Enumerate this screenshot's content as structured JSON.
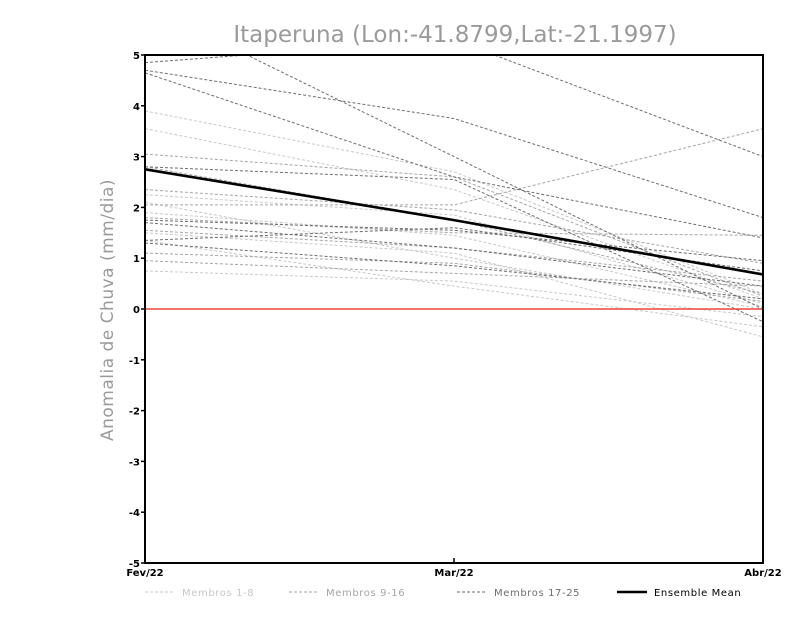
{
  "chart_data": {
    "type": "line",
    "title": "Itaperuna (Lon:-41.8799,Lat:-21.1997)",
    "xlabel": "",
    "ylabel": "Anomalia de Chuva (mm/dia)",
    "categories": [
      "Fev/22",
      "Mar/22",
      "Abr/22"
    ],
    "ylim": [
      -5,
      5
    ],
    "yticks": [
      5,
      4,
      3,
      2,
      1,
      0,
      -1,
      -2,
      -3,
      -4,
      -5
    ],
    "grid": false,
    "legend_position": "bottom",
    "zero_line": {
      "value": 0,
      "color": "#e8463c"
    },
    "colors": {
      "Membros 1-8": "#c8c8c8",
      "Membros 9-16": "#a6a6a6",
      "Membros 17-25": "#6e6e6e",
      "Ensemble Mean": "#000000"
    },
    "legend": [
      "Membros 1-8",
      "Membros 9-16",
      "Membros 17-25",
      "Ensemble Mean"
    ],
    "series": [
      {
        "group": "Membros 1-8",
        "values": [
          3.9,
          2.7,
          0.3
        ]
      },
      {
        "group": "Membros 1-8",
        "values": [
          3.55,
          2.35,
          0.2
        ]
      },
      {
        "group": "Membros 1-8",
        "values": [
          2.25,
          1.85,
          0.1
        ]
      },
      {
        "group": "Membros 1-8",
        "values": [
          1.5,
          1.1,
          -0.55
        ]
      },
      {
        "group": "Membros 1-8",
        "values": [
          1.35,
          0.45,
          -0.35
        ]
      },
      {
        "group": "Membros 1-8",
        "values": [
          0.75,
          0.55,
          -0.15
        ]
      },
      {
        "group": "Membros 1-8",
        "values": [
          2.1,
          1.0,
          0.0
        ]
      },
      {
        "group": "Membros 1-8",
        "values": [
          1.9,
          1.45,
          0.05
        ]
      },
      {
        "group": "Membros 9-16",
        "values": [
          3.05,
          2.6,
          0.25
        ]
      },
      {
        "group": "Membros 9-16",
        "values": [
          2.05,
          2.05,
          3.55
        ]
      },
      {
        "group": "Membros 9-16",
        "values": [
          2.35,
          1.95,
          0.9
        ]
      },
      {
        "group": "Membros 9-16",
        "values": [
          1.8,
          1.5,
          1.45
        ]
      },
      {
        "group": "Membros 9-16",
        "values": [
          1.55,
          1.2,
          0.55
        ]
      },
      {
        "group": "Membros 9-16",
        "values": [
          2.8,
          1.75,
          0.3
        ]
      },
      {
        "group": "Membros 9-16",
        "values": [
          1.1,
          0.9,
          0.15
        ]
      },
      {
        "group": "Membros 9-16",
        "values": [
          0.95,
          0.7,
          0.45
        ]
      },
      {
        "group": "Membros 17-25",
        "values": [
          4.85,
          5.0,
          5.0,
          3.0
        ],
        "x": [
          0,
          0.33,
          1.13,
          2
        ]
      },
      {
        "group": "Membros 17-25",
        "values": [
          5.0,
          5.0,
          3.0,
          0.0
        ],
        "x": [
          0,
          0.33,
          1.0,
          2
        ]
      },
      {
        "group": "Membros 17-25",
        "values": [
          4.7,
          3.75,
          1.8
        ]
      },
      {
        "group": "Membros 17-25",
        "values": [
          4.65,
          2.6,
          1.4
        ]
      },
      {
        "group": "Membros 17-25",
        "values": [
          2.8,
          2.55,
          -0.25
        ]
      },
      {
        "group": "Membros 17-25",
        "values": [
          1.75,
          1.55,
          0.95
        ]
      },
      {
        "group": "Membros 17-25",
        "values": [
          1.7,
          1.2,
          0.45
        ]
      },
      {
        "group": "Membros 17-25",
        "values": [
          1.35,
          1.6,
          0.75
        ]
      },
      {
        "group": "Membros 17-25",
        "values": [
          1.3,
          0.85,
          0.2
        ]
      },
      {
        "group": "Ensemble Mean",
        "values": [
          2.75,
          1.75,
          0.68
        ]
      }
    ]
  }
}
